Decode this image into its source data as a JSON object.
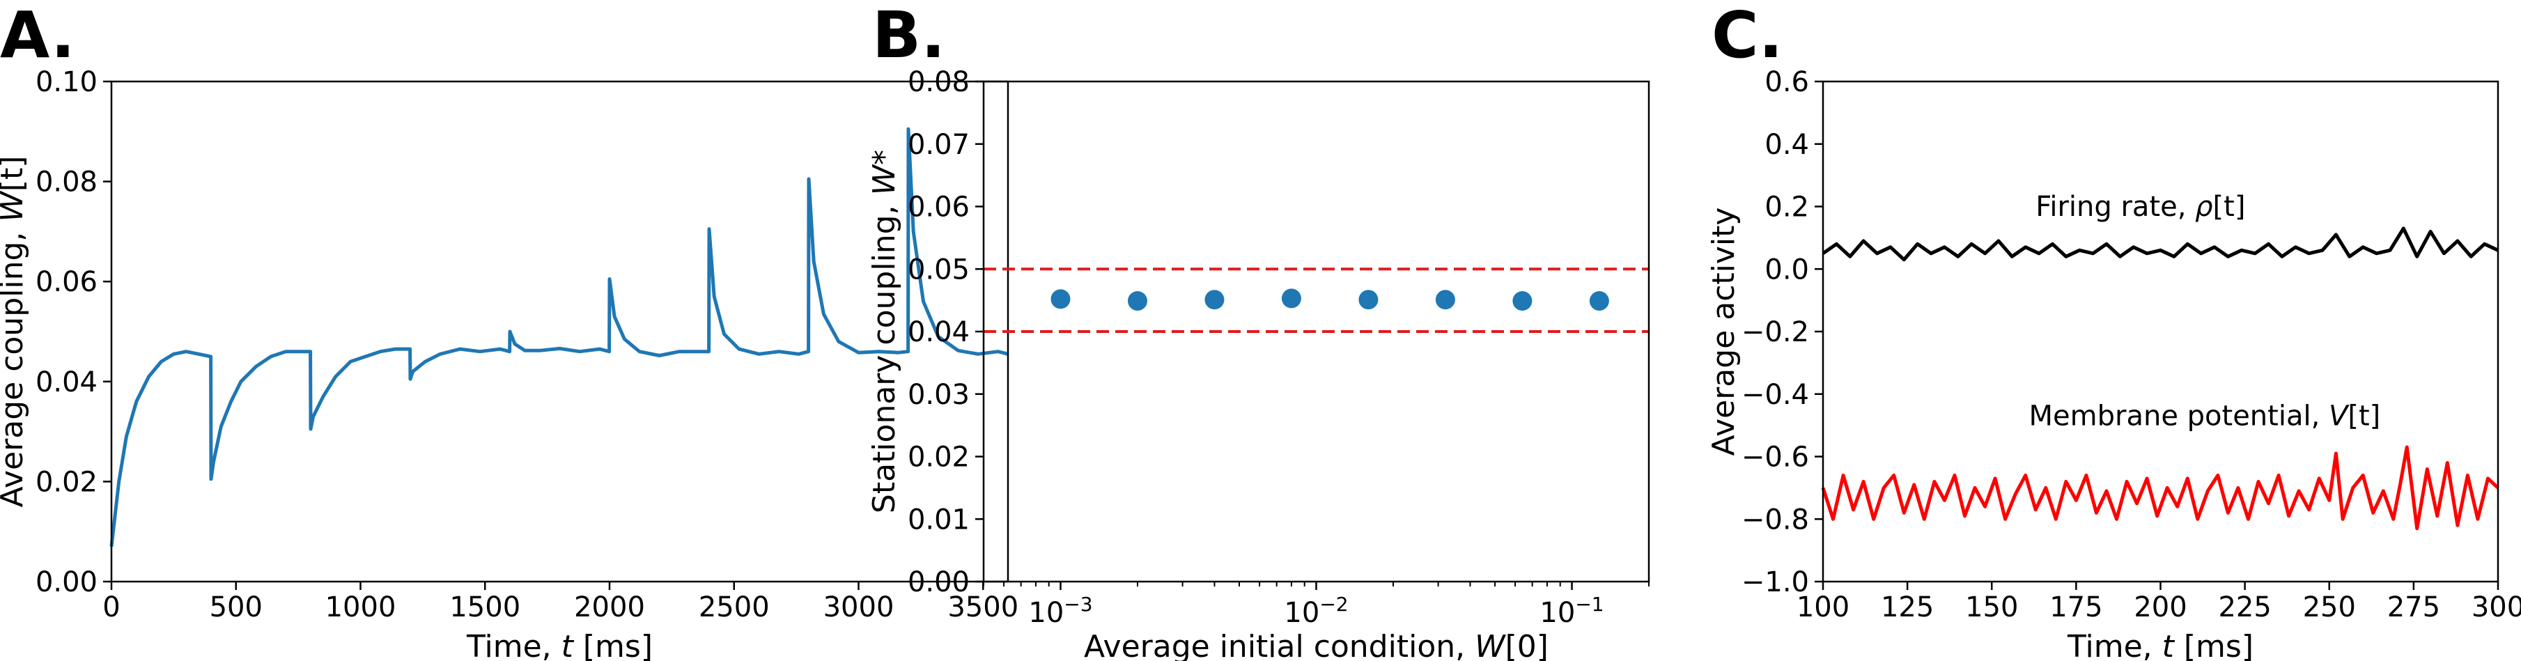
{
  "colors": {
    "blue": "#1f77b4",
    "red": "#ff0000",
    "black": "#000000",
    "dashed": "#e31a1c"
  },
  "chart_data": [
    {
      "panel": "A.",
      "type": "line",
      "xlabel_prefix": "Time, ",
      "xlabel_var": "t",
      "xlabel_suffix": " [ms]",
      "ylabel_prefix": "Average coupling, ",
      "ylabel_var": "W",
      "ylabel_suffix": "[t]",
      "xlim": [
        0,
        3600
      ],
      "ylim": [
        0,
        0.1
      ],
      "xticks": [
        0,
        500,
        1000,
        1500,
        2000,
        2500,
        3000,
        3500
      ],
      "xtick_labels": [
        "0",
        "500",
        "1000",
        "1500",
        "2000",
        "2500",
        "3000",
        "3500"
      ],
      "yticks": [
        0,
        0.02,
        0.04,
        0.06,
        0.08,
        0.1
      ],
      "ytick_labels": [
        "0.00",
        "0.02",
        "0.04",
        "0.06",
        "0.08",
        "0.10"
      ],
      "series": [
        {
          "color": "#1f77b4",
          "x": [
            0,
            30,
            60,
            100,
            150,
            200,
            250,
            300,
            350,
            399,
            400,
            410,
            440,
            480,
            520,
            580,
            640,
            700,
            760,
            799,
            800,
            810,
            850,
            900,
            960,
            1020,
            1080,
            1140,
            1199,
            1200,
            1210,
            1260,
            1320,
            1400,
            1480,
            1560,
            1599,
            1600,
            1620,
            1660,
            1720,
            1800,
            1880,
            1960,
            1999,
            2000,
            2020,
            2060,
            2120,
            2200,
            2280,
            2360,
            2399,
            2400,
            2420,
            2460,
            2520,
            2600,
            2680,
            2760,
            2799,
            2800,
            2820,
            2860,
            2920,
            3000,
            3080,
            3160,
            3199,
            3200,
            3220,
            3260,
            3320,
            3400,
            3480,
            3560,
            3600
          ],
          "y": [
            0.007,
            0.02,
            0.029,
            0.036,
            0.041,
            0.044,
            0.0455,
            0.046,
            0.0455,
            0.045,
            0.0205,
            0.024,
            0.031,
            0.036,
            0.04,
            0.043,
            0.045,
            0.046,
            0.046,
            0.046,
            0.0305,
            0.033,
            0.037,
            0.041,
            0.044,
            0.045,
            0.046,
            0.0465,
            0.0465,
            0.0405,
            0.042,
            0.044,
            0.0455,
            0.0465,
            0.046,
            0.0465,
            0.046,
            0.05,
            0.0475,
            0.0462,
            0.0462,
            0.0466,
            0.046,
            0.0465,
            0.046,
            0.0605,
            0.053,
            0.0485,
            0.046,
            0.0452,
            0.046,
            0.046,
            0.046,
            0.0705,
            0.057,
            0.0495,
            0.0465,
            0.0455,
            0.046,
            0.0455,
            0.046,
            0.0805,
            0.064,
            0.0535,
            0.048,
            0.0458,
            0.046,
            0.0458,
            0.046,
            0.0905,
            0.07,
            0.056,
            0.049,
            0.0462,
            0.0455,
            0.046,
            0.0455
          ]
        }
      ]
    },
    {
      "panel": "B.",
      "type": "scatter",
      "xscale": "log",
      "xlabel_prefix": "Average initial condition,  ",
      "xlabel_var": "W",
      "xlabel_suffix": "[0]",
      "ylabel_prefix": "Stationary coupling, ",
      "ylabel_var": "W",
      "ylabel_suffix": "*",
      "xlim": [
        0.0005,
        0.2
      ],
      "ylim": [
        0,
        0.08
      ],
      "xtick_values": [
        0.001,
        0.01,
        0.1
      ],
      "xtick_base": "10",
      "xtick_exponents": [
        "−3",
        "−2",
        "−1"
      ],
      "yticks": [
        0,
        0.01,
        0.02,
        0.03,
        0.04,
        0.05,
        0.06,
        0.07,
        0.08
      ],
      "ytick_labels": [
        "0.00",
        "0.01",
        "0.02",
        "0.03",
        "0.04",
        "0.05",
        "0.06",
        "0.07",
        "0.08"
      ],
      "hlines": [
        0.05,
        0.04
      ],
      "series": [
        {
          "color": "#1f77b4",
          "x": [
            0.001,
            0.002,
            0.004,
            0.008,
            0.016,
            0.032,
            0.064,
            0.128
          ],
          "y": [
            0.0452,
            0.0449,
            0.0451,
            0.0453,
            0.0451,
            0.0451,
            0.0449,
            0.0449
          ]
        }
      ]
    },
    {
      "panel": "C.",
      "type": "line",
      "xlabel_prefix": "Time, ",
      "xlabel_var": "t",
      "xlabel_suffix": " [ms]",
      "ylabel": "Average activity",
      "xlim": [
        100,
        300
      ],
      "ylim": [
        -1.0,
        0.6
      ],
      "xticks": [
        100,
        125,
        150,
        175,
        200,
        225,
        250,
        275,
        300
      ],
      "xtick_labels": [
        "100",
        "125",
        "150",
        "175",
        "200",
        "225",
        "250",
        "275",
        "300"
      ],
      "yticks": [
        -1.0,
        -0.8,
        -0.6,
        -0.4,
        -0.2,
        0.0,
        0.2,
        0.4,
        0.6
      ],
      "ytick_labels": [
        "−1.0",
        "−0.8",
        "−0.6",
        "−0.4",
        "−0.2",
        "0.0",
        "0.2",
        "0.4",
        "0.6"
      ],
      "series": [
        {
          "color": "#000000",
          "label_prefix": "Firing rate, ",
          "label_var": "ρ",
          "label_suffix": "[t]",
          "label_at": [
            163,
            0.17
          ],
          "x": [
            100,
            104,
            108,
            112,
            116,
            120,
            124,
            128,
            132,
            136,
            140,
            144,
            148,
            152,
            156,
            160,
            164,
            168,
            172,
            176,
            180,
            184,
            188,
            192,
            196,
            200,
            204,
            208,
            212,
            216,
            220,
            224,
            228,
            232,
            236,
            240,
            244,
            248,
            252,
            256,
            260,
            264,
            268,
            272,
            276,
            280,
            284,
            288,
            292,
            296,
            300
          ],
          "y": [
            0.05,
            0.08,
            0.04,
            0.09,
            0.05,
            0.07,
            0.03,
            0.08,
            0.05,
            0.07,
            0.04,
            0.08,
            0.05,
            0.09,
            0.04,
            0.07,
            0.05,
            0.08,
            0.04,
            0.06,
            0.05,
            0.08,
            0.04,
            0.07,
            0.05,
            0.06,
            0.04,
            0.08,
            0.05,
            0.07,
            0.04,
            0.06,
            0.05,
            0.08,
            0.04,
            0.07,
            0.05,
            0.06,
            0.11,
            0.04,
            0.07,
            0.05,
            0.06,
            0.13,
            0.04,
            0.12,
            0.05,
            0.09,
            0.04,
            0.08,
            0.06
          ]
        },
        {
          "color": "#ff0000",
          "label_prefix": "Membrane potential, ",
          "label_var": "V",
          "label_suffix": "[t]",
          "label_at": [
            161,
            -0.5
          ],
          "x": [
            100,
            103,
            106,
            109,
            112,
            115,
            118,
            121,
            124,
            127,
            130,
            133,
            136,
            139,
            142,
            145,
            148,
            151,
            154,
            157,
            160,
            163,
            166,
            169,
            172,
            175,
            178,
            181,
            184,
            187,
            190,
            193,
            196,
            199,
            202,
            205,
            208,
            211,
            214,
            217,
            220,
            223,
            226,
            229,
            232,
            235,
            238,
            241,
            244,
            247,
            250,
            252,
            254,
            257,
            260,
            263,
            266,
            269,
            271,
            273,
            276,
            279,
            282,
            285,
            288,
            291,
            294,
            297,
            300
          ],
          "y": [
            -0.7,
            -0.8,
            -0.66,
            -0.77,
            -0.68,
            -0.8,
            -0.7,
            -0.66,
            -0.78,
            -0.69,
            -0.8,
            -0.68,
            -0.74,
            -0.66,
            -0.79,
            -0.7,
            -0.76,
            -0.67,
            -0.8,
            -0.72,
            -0.66,
            -0.77,
            -0.7,
            -0.8,
            -0.68,
            -0.74,
            -0.66,
            -0.78,
            -0.71,
            -0.8,
            -0.68,
            -0.75,
            -0.67,
            -0.79,
            -0.7,
            -0.76,
            -0.67,
            -0.8,
            -0.71,
            -0.66,
            -0.78,
            -0.7,
            -0.8,
            -0.68,
            -0.75,
            -0.66,
            -0.79,
            -0.71,
            -0.77,
            -0.67,
            -0.74,
            -0.59,
            -0.8,
            -0.7,
            -0.66,
            -0.78,
            -0.71,
            -0.8,
            -0.69,
            -0.57,
            -0.83,
            -0.64,
            -0.79,
            -0.62,
            -0.82,
            -0.66,
            -0.8,
            -0.67,
            -0.7
          ]
        }
      ]
    }
  ]
}
